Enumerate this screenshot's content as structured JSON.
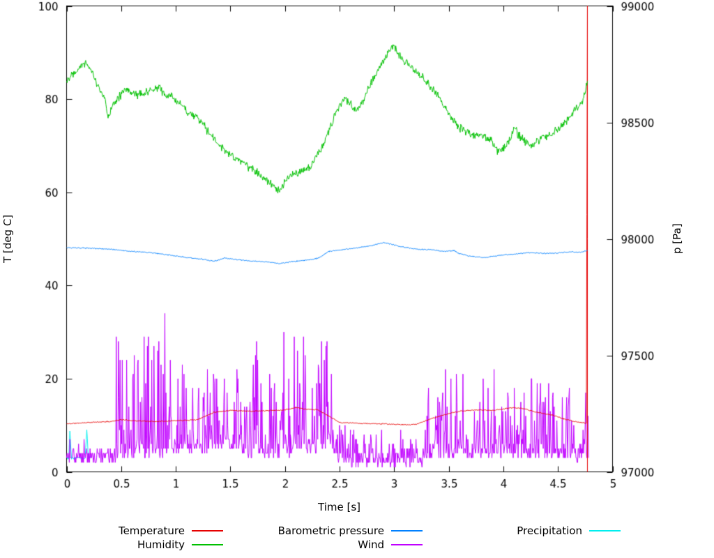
{
  "chart_data": {
    "type": "line",
    "title": "",
    "xlabel": "Time [s]",
    "ylabel_left": "T [deg C]",
    "ylabel_right": "p [Pa]",
    "xlim": [
      0,
      5
    ],
    "ylim_left": [
      0,
      100
    ],
    "ylim_right": [
      97000,
      99000
    ],
    "grid": false,
    "legend_position": "bottom",
    "xticks": [
      0,
      0.5,
      1,
      1.5,
      2,
      2.5,
      3,
      3.5,
      4,
      4.5,
      5
    ],
    "xtick_labels": [
      "0",
      "0.5",
      "1",
      "1.5",
      "2",
      "2.5",
      "3",
      "3.5",
      "4",
      "4.5",
      "5"
    ],
    "yticks_left": [
      0,
      20,
      40,
      60,
      80,
      100
    ],
    "ytick_labels_left": [
      "0",
      "20",
      "40",
      "60",
      "80",
      "100"
    ],
    "yticks_right": [
      97000,
      97500,
      98000,
      98500,
      99000
    ],
    "ytick_labels_right": [
      "97000",
      "97500",
      "98000",
      "98500",
      "99000"
    ],
    "series": [
      {
        "name": "Temperature",
        "color": "#e60000",
        "axis": "left",
        "kind": "smooth",
        "seed": 11,
        "noise": 0.14,
        "z": 3,
        "keypoints": [
          [
            0,
            10.3
          ],
          [
            0.2,
            10.6
          ],
          [
            0.4,
            10.8
          ],
          [
            0.5,
            11.2
          ],
          [
            0.6,
            11.0
          ],
          [
            0.8,
            10.8
          ],
          [
            1.0,
            11.0
          ],
          [
            1.2,
            11.2
          ],
          [
            1.35,
            12.8
          ],
          [
            1.5,
            13.2
          ],
          [
            1.7,
            13.0
          ],
          [
            1.9,
            13.2
          ],
          [
            2.0,
            13.3
          ],
          [
            2.1,
            13.8
          ],
          [
            2.2,
            13.4
          ],
          [
            2.3,
            13.3
          ],
          [
            2.4,
            12.0
          ],
          [
            2.5,
            10.6
          ],
          [
            2.7,
            10.4
          ],
          [
            2.9,
            10.3
          ],
          [
            3.1,
            10.1
          ],
          [
            3.2,
            10.2
          ],
          [
            3.35,
            11.5
          ],
          [
            3.5,
            12.5
          ],
          [
            3.6,
            13.0
          ],
          [
            3.75,
            13.3
          ],
          [
            3.9,
            13.2
          ],
          [
            4.0,
            13.5
          ],
          [
            4.1,
            13.8
          ],
          [
            4.2,
            13.5
          ],
          [
            4.3,
            12.8
          ],
          [
            4.45,
            12.2
          ],
          [
            4.55,
            11.4
          ],
          [
            4.65,
            10.8
          ],
          [
            4.76,
            10.4
          ]
        ],
        "tail": [
          [
            4.77,
            100
          ],
          [
            4.77,
            0
          ]
        ]
      },
      {
        "name": "Humidity",
        "color": "#00c000",
        "axis": "left",
        "kind": "smooth",
        "seed": 22,
        "noise": 1.1,
        "z": 4,
        "keypoints": [
          [
            0,
            84
          ],
          [
            0.05,
            85.5
          ],
          [
            0.12,
            87
          ],
          [
            0.18,
            88
          ],
          [
            0.25,
            85
          ],
          [
            0.3,
            82
          ],
          [
            0.35,
            80
          ],
          [
            0.38,
            76
          ],
          [
            0.42,
            79
          ],
          [
            0.5,
            81
          ],
          [
            0.55,
            82
          ],
          [
            0.65,
            81
          ],
          [
            0.75,
            81.5
          ],
          [
            0.85,
            82.5
          ],
          [
            0.9,
            81
          ],
          [
            1.0,
            80
          ],
          [
            1.1,
            77.5
          ],
          [
            1.2,
            76
          ],
          [
            1.3,
            73
          ],
          [
            1.4,
            70
          ],
          [
            1.5,
            68
          ],
          [
            1.6,
            66.5
          ],
          [
            1.7,
            65
          ],
          [
            1.8,
            63.5
          ],
          [
            1.9,
            61
          ],
          [
            1.95,
            60
          ],
          [
            2.0,
            62
          ],
          [
            2.05,
            63.5
          ],
          [
            2.15,
            64.5
          ],
          [
            2.25,
            66
          ],
          [
            2.35,
            70
          ],
          [
            2.45,
            76
          ],
          [
            2.5,
            79
          ],
          [
            2.55,
            80.5
          ],
          [
            2.6,
            79
          ],
          [
            2.65,
            77.5
          ],
          [
            2.7,
            79
          ],
          [
            2.8,
            84
          ],
          [
            2.9,
            88
          ],
          [
            2.95,
            90
          ],
          [
            3.0,
            91.5
          ],
          [
            3.05,
            89.5
          ],
          [
            3.1,
            88
          ],
          [
            3.2,
            86
          ],
          [
            3.3,
            83.5
          ],
          [
            3.4,
            81
          ],
          [
            3.45,
            79
          ],
          [
            3.5,
            76.5
          ],
          [
            3.6,
            74
          ],
          [
            3.7,
            72.5
          ],
          [
            3.8,
            72
          ],
          [
            3.9,
            71
          ],
          [
            3.95,
            68.5
          ],
          [
            4.0,
            69.5
          ],
          [
            4.05,
            71
          ],
          [
            4.1,
            73.5
          ],
          [
            4.15,
            72
          ],
          [
            4.25,
            70
          ],
          [
            4.35,
            71.5
          ],
          [
            4.45,
            72.5
          ],
          [
            4.55,
            74.5
          ],
          [
            4.6,
            76
          ],
          [
            4.65,
            77.5
          ],
          [
            4.7,
            78.5
          ],
          [
            4.73,
            80
          ],
          [
            4.77,
            84
          ]
        ]
      },
      {
        "name": "Barometric pressure",
        "color": "#0080ff",
        "axis": "right",
        "kind": "smooth",
        "seed": 33,
        "noise": 3,
        "z": 5,
        "keypoints": [
          [
            0,
            97962
          ],
          [
            0.2,
            97960
          ],
          [
            0.4,
            97956
          ],
          [
            0.6,
            97946
          ],
          [
            0.8,
            97940
          ],
          [
            1.0,
            97926
          ],
          [
            1.1,
            97920
          ],
          [
            1.25,
            97912
          ],
          [
            1.35,
            97904
          ],
          [
            1.45,
            97918
          ],
          [
            1.55,
            97912
          ],
          [
            1.65,
            97906
          ],
          [
            1.75,
            97904
          ],
          [
            1.85,
            97900
          ],
          [
            1.95,
            97894
          ],
          [
            2.05,
            97902
          ],
          [
            2.15,
            97906
          ],
          [
            2.3,
            97916
          ],
          [
            2.4,
            97946
          ],
          [
            2.5,
            97952
          ],
          [
            2.6,
            97958
          ],
          [
            2.7,
            97964
          ],
          [
            2.8,
            97972
          ],
          [
            2.9,
            97984
          ],
          [
            2.95,
            97980
          ],
          [
            3.05,
            97968
          ],
          [
            3.15,
            97960
          ],
          [
            3.25,
            97954
          ],
          [
            3.35,
            97954
          ],
          [
            3.45,
            97946
          ],
          [
            3.55,
            97950
          ],
          [
            3.6,
            97936
          ],
          [
            3.7,
            97926
          ],
          [
            3.8,
            97920
          ],
          [
            3.9,
            97924
          ],
          [
            4.0,
            97932
          ],
          [
            4.1,
            97934
          ],
          [
            4.2,
            97940
          ],
          [
            4.3,
            97940
          ],
          [
            4.4,
            97938
          ],
          [
            4.5,
            97940
          ],
          [
            4.6,
            97944
          ],
          [
            4.7,
            97942
          ],
          [
            4.77,
            97950
          ]
        ]
      },
      {
        "name": "Wind",
        "color": "#c000ff",
        "axis": "left",
        "kind": "spiky",
        "seed": 44,
        "z": 2,
        "segments": [
          [
            0,
            0.45,
            3,
            3
          ],
          [
            0.45,
            1.0,
            4,
            26
          ],
          [
            1.0,
            1.3,
            5,
            18
          ],
          [
            1.3,
            1.6,
            6,
            17
          ],
          [
            1.6,
            2.05,
            4,
            24
          ],
          [
            2.05,
            2.45,
            5,
            23
          ],
          [
            2.45,
            2.6,
            3,
            8
          ],
          [
            2.6,
            3.3,
            2.5,
            6
          ],
          [
            3.3,
            3.6,
            4,
            17
          ],
          [
            3.6,
            4.1,
            4,
            16
          ],
          [
            4.1,
            4.45,
            4,
            16
          ],
          [
            4.45,
            4.78,
            3.5,
            14
          ]
        ],
        "spikes": [
          [
            0.55,
            24
          ],
          [
            0.75,
            29
          ],
          [
            0.78,
            24
          ],
          [
            0.9,
            34
          ],
          [
            0.95,
            24
          ],
          [
            1.35,
            21
          ],
          [
            1.45,
            20
          ],
          [
            1.75,
            28
          ],
          [
            2.0,
            30
          ],
          [
            2.1,
            29
          ],
          [
            2.2,
            25
          ],
          [
            2.35,
            28
          ],
          [
            2.4,
            28
          ],
          [
            3.5,
            22
          ],
          [
            3.55,
            20
          ],
          [
            3.85,
            20
          ],
          [
            3.95,
            22
          ],
          [
            4.3,
            20
          ],
          [
            4.5,
            17
          ],
          [
            4.65,
            18
          ]
        ]
      },
      {
        "name": "Precipitation",
        "color": "#00eeee",
        "axis": "left",
        "kind": "smooth",
        "seed": 55,
        "noise": 0.4,
        "z": 1,
        "keypoints": [
          [
            0,
            3
          ],
          [
            0.02,
            3
          ],
          [
            0.03,
            9
          ],
          [
            0.045,
            3
          ],
          [
            0.1,
            3
          ],
          [
            0.17,
            3
          ],
          [
            0.185,
            9
          ],
          [
            0.2,
            3
          ],
          [
            0.22,
            3
          ]
        ]
      }
    ]
  }
}
